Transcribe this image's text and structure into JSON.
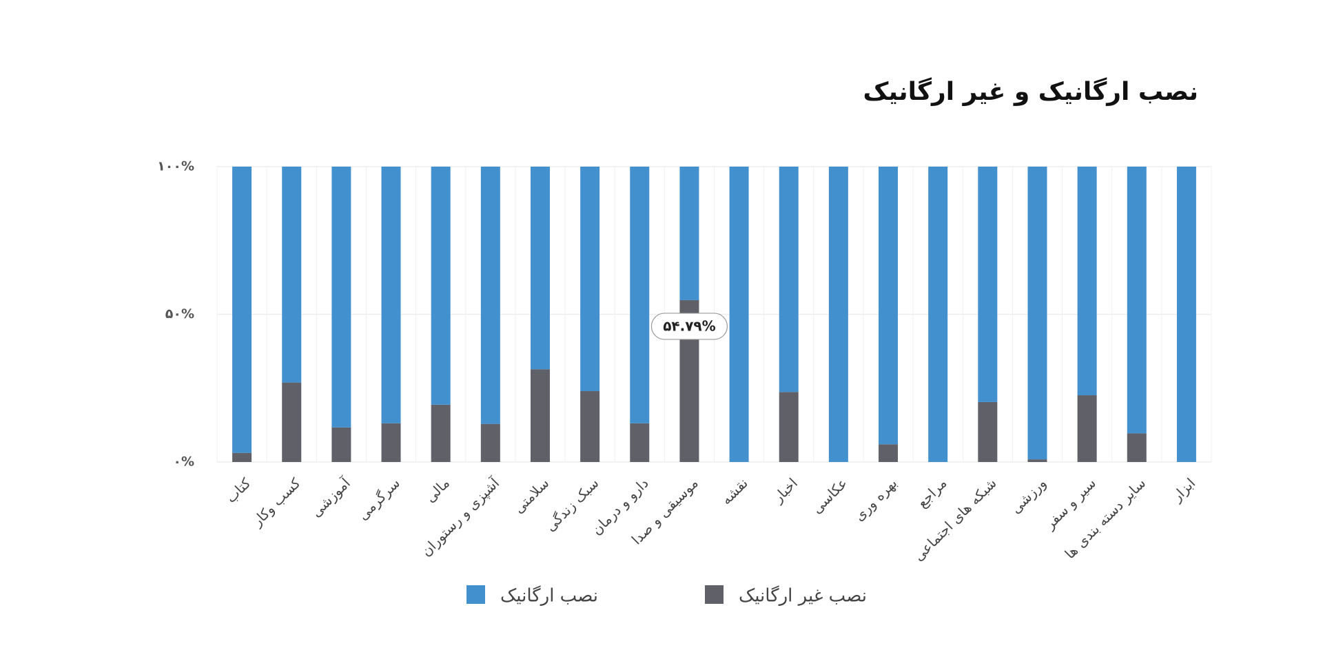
{
  "chart_data": {
    "type": "stacked-bar",
    "title": "نصب ارگانیک و غیر ارگانیک",
    "categories": [
      "کتاب",
      "کسب وکار",
      "آموزشی",
      "سرگرمی",
      "مالی",
      "آشپزی و رستوران",
      "سلامتی",
      "سبک زندگی",
      "دارو و درمان",
      "موسیقی و صدا",
      "نقشه",
      "اخبار",
      "عکاسی",
      "بهره وری",
      "مراجع",
      "شبکه های اجتماعی",
      "ورزشی",
      "سیر و سفر",
      "سایر دسته بندی ها",
      "ابزار"
    ],
    "series": [
      {
        "name": "نصب غیر ارگانیک",
        "color": "#606068",
        "values": [
          3.1,
          26.9,
          11.7,
          13.1,
          19.4,
          12.9,
          31.4,
          24,
          13.1,
          54.79,
          0,
          23.7,
          0,
          6,
          0,
          20.3,
          0.9,
          22.6,
          9.7,
          0
        ],
        "value_labels": [
          null,
          null,
          null,
          null,
          null,
          null,
          null,
          null,
          null,
          "۵۴.۷۹%",
          null,
          null,
          null,
          null,
          null,
          null,
          null,
          null,
          null,
          null
        ]
      },
      {
        "name": "نصب ارگانیک",
        "color": "#4390cf",
        "values": [
          96.9,
          73.1,
          88.3,
          86.9,
          80.6,
          87.1,
          68.6,
          76,
          86.9,
          45.21,
          100,
          76.3,
          100,
          94,
          100,
          79.7,
          99.1,
          77.4,
          90.3,
          100
        ]
      }
    ],
    "ylim": [
      0,
      100
    ],
    "yticks": [
      {
        "value": 0,
        "label": "۰%"
      },
      {
        "value": 50,
        "label": "۵۰%"
      },
      {
        "value": 100,
        "label": "۱۰۰%"
      }
    ],
    "grid": true
  }
}
